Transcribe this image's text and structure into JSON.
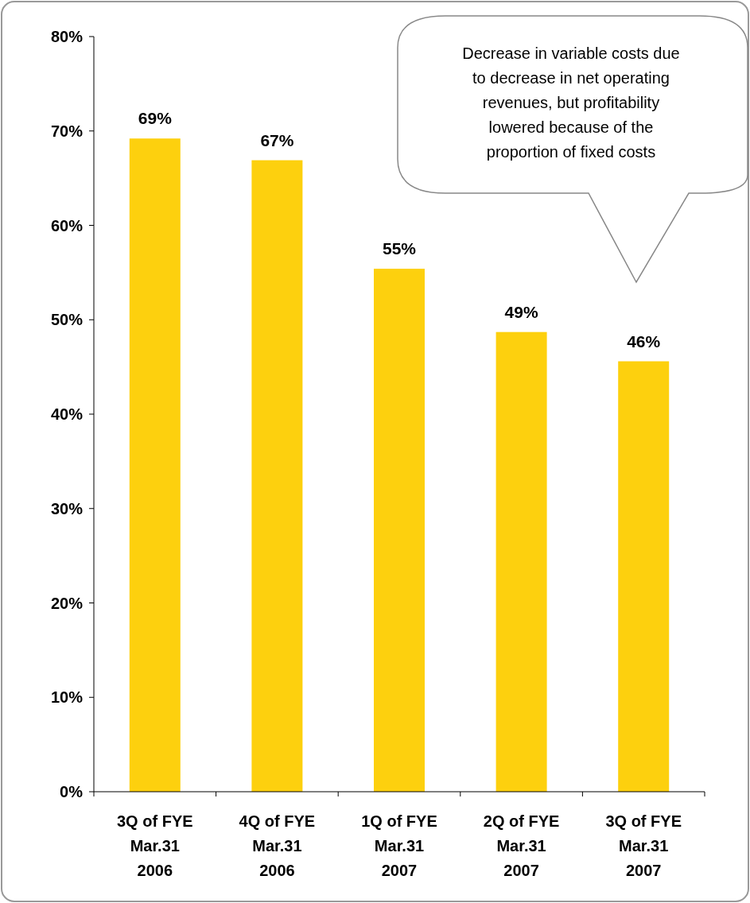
{
  "chart_data": {
    "type": "bar",
    "categories": [
      "3Q of FYE\nMar.31\n2006",
      "4Q of FYE\nMar.31\n2006",
      "1Q of FYE\nMar.31\n2007",
      "2Q of FYE\nMar.31\n2007",
      "3Q of FYE\nMar.31\n2007"
    ],
    "values": [
      69.2,
      66.9,
      55.4,
      48.7,
      45.6
    ],
    "value_labels": [
      "69%",
      "67%",
      "55%",
      "49%",
      "46%"
    ],
    "color": "#fdd00e",
    "ylim": [
      0,
      80
    ],
    "yticks": [
      {
        "value": 0,
        "label": "0%"
      },
      {
        "value": 10,
        "label": "10%"
      },
      {
        "value": 20,
        "label": "20%"
      },
      {
        "value": 30,
        "label": "30%"
      },
      {
        "value": 40,
        "label": "40%"
      },
      {
        "value": 50,
        "label": "50%"
      },
      {
        "value": 60,
        "label": "60%"
      },
      {
        "value": 70,
        "label": "70%"
      },
      {
        "value": 80,
        "label": "80%"
      }
    ],
    "grid": false,
    "annotations": [
      "Decrease in variable costs due\nto decrease in net operating\nrevenues, but profitability\nlowered because of the\nproportion of fixed costs"
    ]
  }
}
